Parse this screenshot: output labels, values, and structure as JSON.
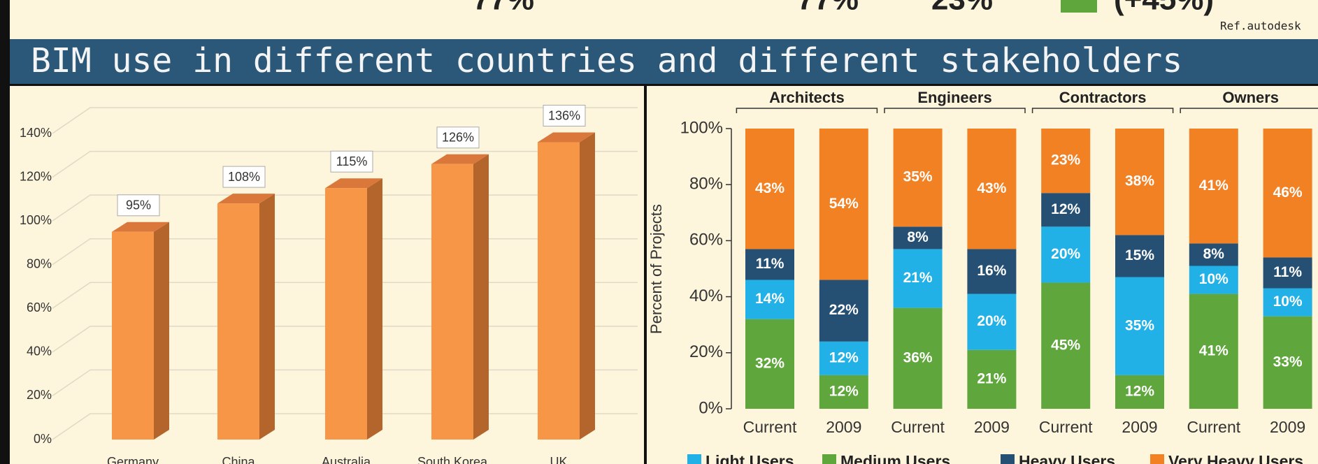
{
  "top": {
    "texts": [
      "77%",
      "77%",
      "23%",
      "(+45%)"
    ],
    "reference": "Ref.autodesk"
  },
  "header": {
    "title": "BIM use in different countries and different stakeholders"
  },
  "chart_data": [
    {
      "type": "bar3d",
      "categories": [
        "Germany",
        "China",
        "Australia",
        "South Korea",
        "UK"
      ],
      "values": [
        95,
        108,
        115,
        126,
        136
      ],
      "value_labels": [
        "95%",
        "108%",
        "115%",
        "126%",
        "136%"
      ],
      "color": "#f79646",
      "ylim": [
        0,
        140
      ],
      "yticks": [
        {
          "value": 0,
          "label": "0%"
        },
        {
          "value": 20,
          "label": "20%"
        },
        {
          "value": 40,
          "label": "40%"
        },
        {
          "value": 60,
          "label": "60%"
        },
        {
          "value": 80,
          "label": "80%"
        },
        {
          "value": 100,
          "label": "100%"
        },
        {
          "value": 120,
          "label": "120%"
        },
        {
          "value": 140,
          "label": "140%"
        }
      ],
      "grid": true
    },
    {
      "type": "stacked_bar",
      "y_label": "Percent of Projects",
      "groups": [
        "Architects",
        "Engineers",
        "Contractors",
        "Owners"
      ],
      "categories": [
        "Current",
        "2009",
        "Current",
        "2009",
        "Current",
        "2009",
        "Current",
        "2009"
      ],
      "series": [
        {
          "name": "Light Users",
          "color": "#21b1e6",
          "values": [
            14,
            12,
            21,
            20,
            20,
            35,
            10,
            10
          ],
          "value_labels": [
            "14%",
            "12%",
            "21%",
            "20%",
            "20%",
            "35%",
            "10%",
            "10%"
          ]
        },
        {
          "name": "Medium Users",
          "color": "#5fa63c",
          "values": [
            32,
            12,
            36,
            21,
            45,
            12,
            41,
            33
          ],
          "value_labels": [
            "32%",
            "12%",
            "36%",
            "21%",
            "45%",
            "12%",
            "41%",
            "33%"
          ]
        },
        {
          "name": "Heavy Users",
          "color": "#254f73",
          "values": [
            11,
            22,
            8,
            16,
            12,
            15,
            8,
            11
          ],
          "value_labels": [
            "11%",
            "22%",
            "8%",
            "16%",
            "12%",
            "15%",
            "8%",
            "11%"
          ]
        },
        {
          "name": "Very Heavy Users",
          "color": "#f28124",
          "values": [
            43,
            54,
            35,
            43,
            23,
            38,
            41,
            46
          ],
          "value_labels": [
            "43%",
            "54%",
            "35%",
            "43%",
            "23%",
            "38%",
            "41%",
            "46%"
          ]
        }
      ],
      "stack_order": [
        "Medium Users",
        "Light Users",
        "Heavy Users",
        "Very Heavy Users"
      ],
      "ylim": [
        0,
        100
      ],
      "yticks": [
        {
          "value": 0,
          "label": "0%"
        },
        {
          "value": 20,
          "label": "20%"
        },
        {
          "value": 40,
          "label": "40%"
        },
        {
          "value": 60,
          "label": "60%"
        },
        {
          "value": 80,
          "label": "80%"
        },
        {
          "value": 100,
          "label": "100%"
        }
      ],
      "legend": "bottom"
    }
  ]
}
